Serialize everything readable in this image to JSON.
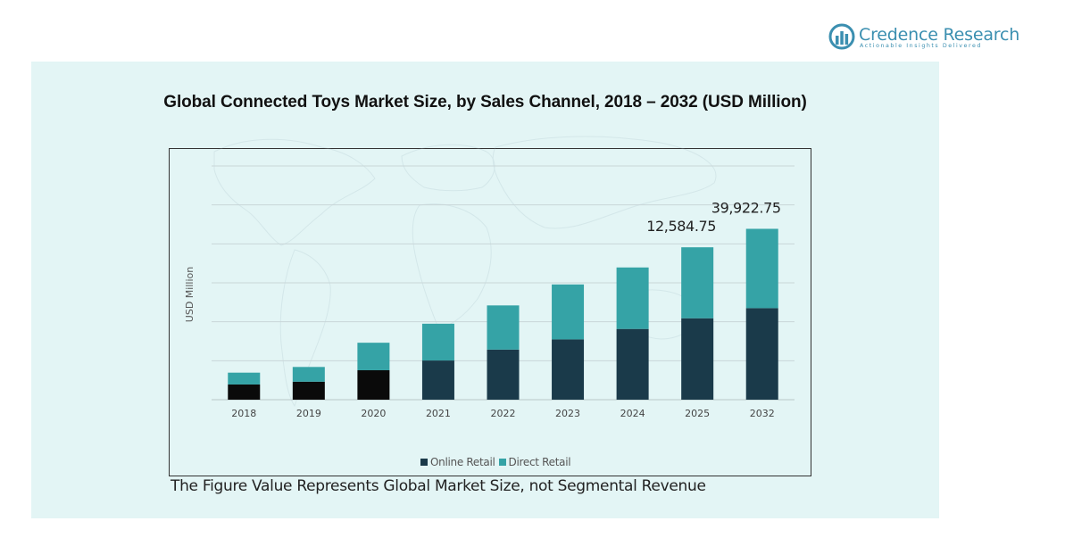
{
  "logo": {
    "name": "Credence Research",
    "tagline": "Actionable Insights Delivered",
    "color": "#3b8fb0"
  },
  "footnote": "The Figure Value Represents Global Market Size, not Segmental Revenue",
  "chart_data": {
    "type": "bar",
    "stacked": true,
    "title": "Global Connected Toys Market Size, by Sales Channel, 2018 – 2032 (USD Million)",
    "xlabel": "",
    "ylabel": "USD Million",
    "categories": [
      "2018",
      "2019",
      "2020",
      "2021",
      "2022",
      "2023",
      "2024",
      "2025",
      "2032"
    ],
    "series": [
      {
        "name": "Online Retail",
        "color": "#1a3a4a",
        "values": [
          1950,
          2310,
          3780,
          5030,
          6430,
          7740,
          9080,
          10450,
          11750
        ]
      },
      {
        "name": "Direct Retail",
        "color": "#35a3a6",
        "values": [
          1520,
          1890,
          3530,
          4720,
          5670,
          7050,
          7890,
          9110,
          10180
        ]
      }
    ],
    "data_labels": [
      {
        "category": "2025",
        "text": "12,584.75"
      },
      {
        "category": "2032",
        "text": "39,922.75"
      }
    ],
    "ylim": [
      0,
      30000
    ],
    "gridlines": true,
    "legend_position": "bottom",
    "early_year_online_color": "#0a0a0a"
  }
}
